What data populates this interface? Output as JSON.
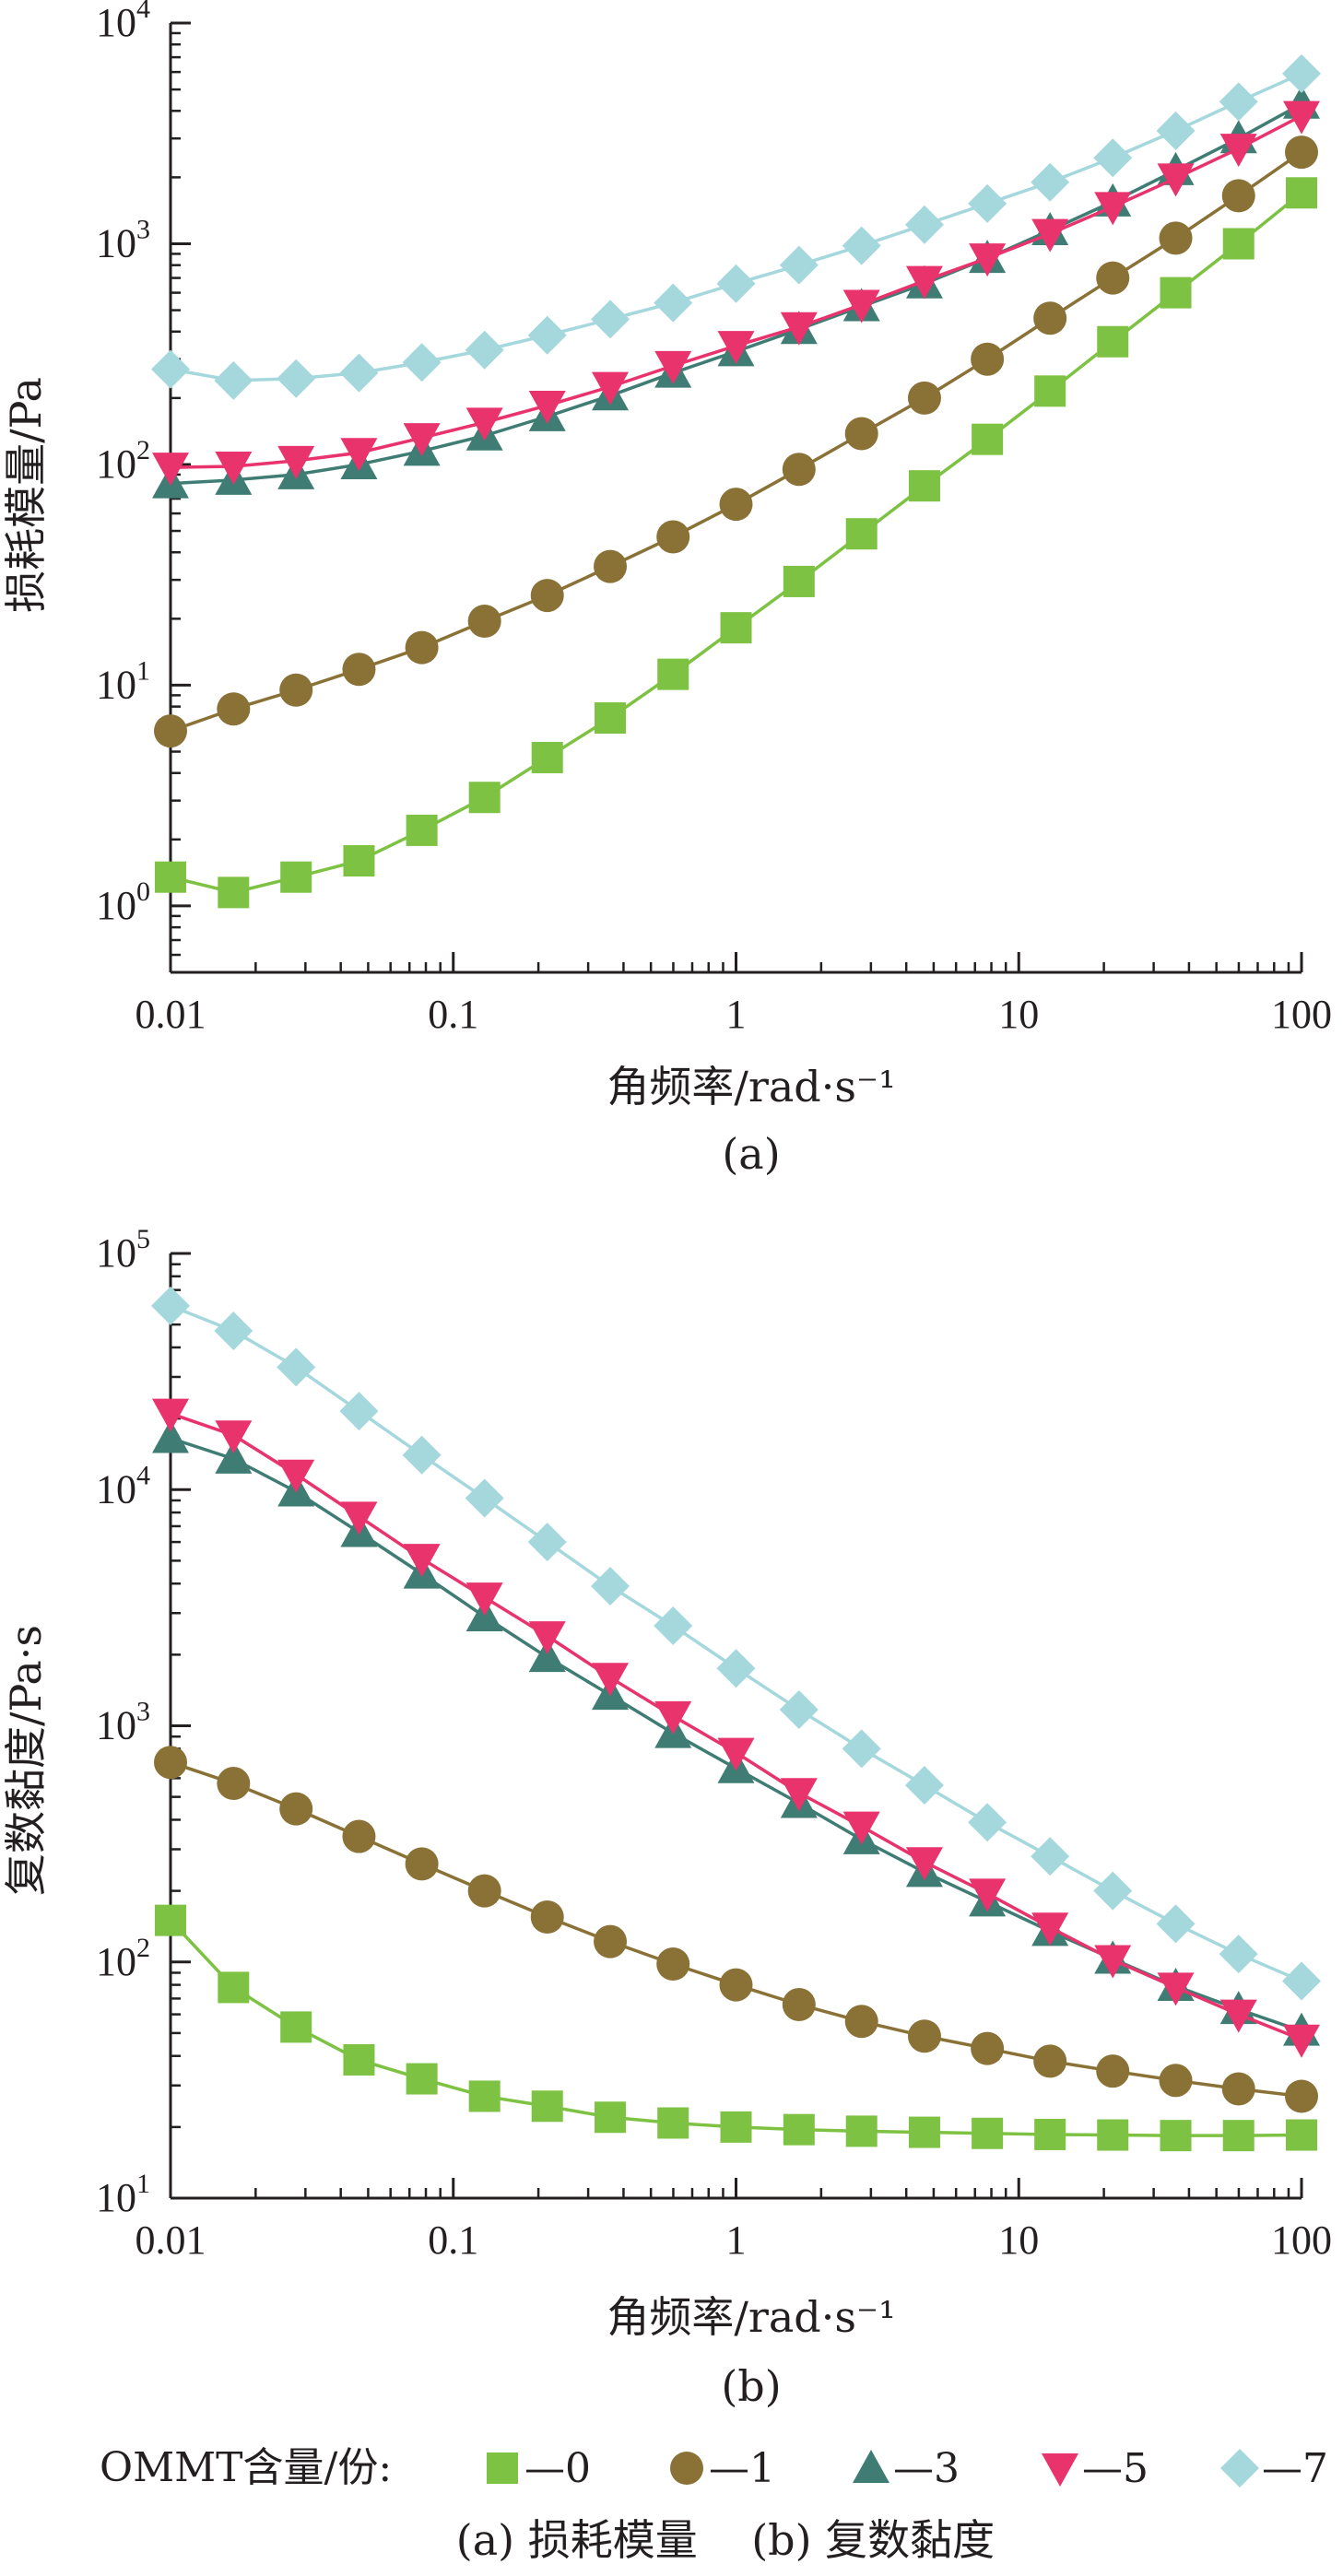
{
  "chart_data": [
    {
      "type": "line",
      "panel_caption": "(a)",
      "xlabel": "角频率/rad·s⁻¹",
      "ylabel": "损耗模量/Pa",
      "xscale": "log",
      "yscale": "log",
      "xlim": [
        0.01,
        100
      ],
      "ylim": [
        0.5,
        10000
      ],
      "x_ticks": [
        0.01,
        0.1,
        1,
        10,
        100
      ],
      "x_tick_labels": [
        "0.01",
        "0.1",
        "1",
        "10",
        "100"
      ],
      "y_ticks": [
        1,
        10,
        100,
        1000,
        10000
      ],
      "y_tick_labels": [
        {
          "base": "10",
          "exp": "0"
        },
        {
          "base": "10",
          "exp": "1"
        },
        {
          "base": "10",
          "exp": "2"
        },
        {
          "base": "10",
          "exp": "3"
        },
        {
          "base": "10",
          "exp": "4"
        }
      ],
      "x": [
        0.01,
        0.0167,
        0.0278,
        0.0464,
        0.0774,
        0.129,
        0.215,
        0.359,
        0.599,
        1.0,
        1.67,
        2.78,
        4.64,
        7.74,
        12.9,
        21.5,
        35.9,
        59.9,
        100
      ],
      "series": [
        {
          "name": "0",
          "marker": "square",
          "color": "#7dc242",
          "values": [
            1.35,
            1.15,
            1.35,
            1.6,
            2.2,
            3.1,
            4.7,
            7.1,
            11.2,
            18.2,
            29.5,
            48.5,
            80,
            130,
            215,
            360,
            600,
            1000,
            1700
          ]
        },
        {
          "name": "1",
          "marker": "circle",
          "color": "#8a7237",
          "values": [
            6.2,
            7.8,
            9.5,
            11.8,
            14.8,
            19.5,
            25.5,
            34.5,
            47,
            66,
            95,
            138,
            200,
            300,
            460,
            700,
            1060,
            1650,
            2600
          ]
        },
        {
          "name": "3",
          "marker": "triangle-up",
          "color": "#3f7d74",
          "values": [
            82,
            85,
            90,
            100,
            115,
            135,
            165,
            205,
            260,
            325,
            410,
            520,
            660,
            860,
            1150,
            1550,
            2150,
            3000,
            4300
          ]
        },
        {
          "name": "5",
          "marker": "triangle-down",
          "color": "#e8336d",
          "values": [
            97,
            98,
            104,
            113,
            132,
            155,
            185,
            225,
            280,
            345,
            420,
            530,
            680,
            860,
            1110,
            1470,
            1980,
            2700,
            3800
          ]
        },
        {
          "name": "7",
          "marker": "diamond",
          "color": "#a5d8dd",
          "values": [
            270,
            240,
            245,
            260,
            290,
            330,
            385,
            455,
            540,
            660,
            800,
            980,
            1220,
            1520,
            1900,
            2450,
            3250,
            4400,
            5900
          ]
        }
      ]
    },
    {
      "type": "line",
      "panel_caption": "(b)",
      "xlabel": "角频率/rad·s⁻¹",
      "ylabel": "复数黏度/Pa·s",
      "xscale": "log",
      "yscale": "log",
      "xlim": [
        0.01,
        100
      ],
      "ylim": [
        10,
        100000
      ],
      "x_ticks": [
        0.01,
        0.1,
        1,
        10,
        100
      ],
      "x_tick_labels": [
        "0.01",
        "0.1",
        "1",
        "10",
        "100"
      ],
      "y_ticks": [
        10,
        100,
        1000,
        10000,
        100000
      ],
      "y_tick_labels": [
        {
          "base": "10",
          "exp": "1"
        },
        {
          "base": "10",
          "exp": "2"
        },
        {
          "base": "10",
          "exp": "3"
        },
        {
          "base": "10",
          "exp": "4"
        },
        {
          "base": "10",
          "exp": "5"
        }
      ],
      "x": [
        0.01,
        0.0167,
        0.0278,
        0.0464,
        0.0774,
        0.129,
        0.215,
        0.359,
        0.599,
        1.0,
        1.67,
        2.78,
        4.64,
        7.74,
        12.9,
        21.5,
        35.9,
        59.9,
        100
      ],
      "series": [
        {
          "name": "0",
          "marker": "square",
          "color": "#7dc242",
          "values": [
            150,
            78,
            53,
            38.5,
            32,
            27,
            24.5,
            22,
            20.8,
            20,
            19.5,
            19.2,
            19,
            18.8,
            18.6,
            18.5,
            18.4,
            18.4,
            18.5
          ]
        },
        {
          "name": "1",
          "marker": "circle",
          "color": "#8a7237",
          "values": [
            700,
            570,
            445,
            340,
            260,
            200,
            155,
            122,
            98,
            80,
            66,
            56,
            48.5,
            43,
            38,
            34.5,
            31.5,
            29,
            27
          ]
        },
        {
          "name": "3",
          "marker": "triangle-up",
          "color": "#3f7d74",
          "values": [
            16500,
            13500,
            9800,
            6600,
            4400,
            2900,
            1950,
            1350,
            930,
            660,
            470,
            330,
            240,
            180,
            135,
            103,
            79,
            63,
            51
          ]
        },
        {
          "name": "5",
          "marker": "triangle-down",
          "color": "#e8336d",
          "values": [
            21000,
            17000,
            11600,
            7700,
            5100,
            3500,
            2400,
            1600,
            1100,
            770,
            520,
            375,
            265,
            195,
            140,
            102,
            78,
            60,
            47
          ]
        },
        {
          "name": "7",
          "marker": "diamond",
          "color": "#a5d8dd",
          "values": [
            60000,
            47000,
            33000,
            21500,
            14000,
            9200,
            6000,
            3900,
            2650,
            1750,
            1170,
            800,
            560,
            390,
            280,
            200,
            145,
            108,
            83
          ]
        }
      ]
    }
  ],
  "legend": {
    "title": "OMMT含量/份:",
    "items": [
      {
        "label": "—0",
        "marker": "square",
        "color": "#7dc242"
      },
      {
        "label": "—1",
        "marker": "circle",
        "color": "#8a7237"
      },
      {
        "label": "—3",
        "marker": "triangle-up",
        "color": "#3f7d74"
      },
      {
        "label": "—5",
        "marker": "triangle-down",
        "color": "#e8336d"
      },
      {
        "label": "—7",
        "marker": "diamond",
        "color": "#a5d8dd"
      }
    ]
  },
  "figure_caption": "(a) 损耗模量    (b) 复数黏度"
}
